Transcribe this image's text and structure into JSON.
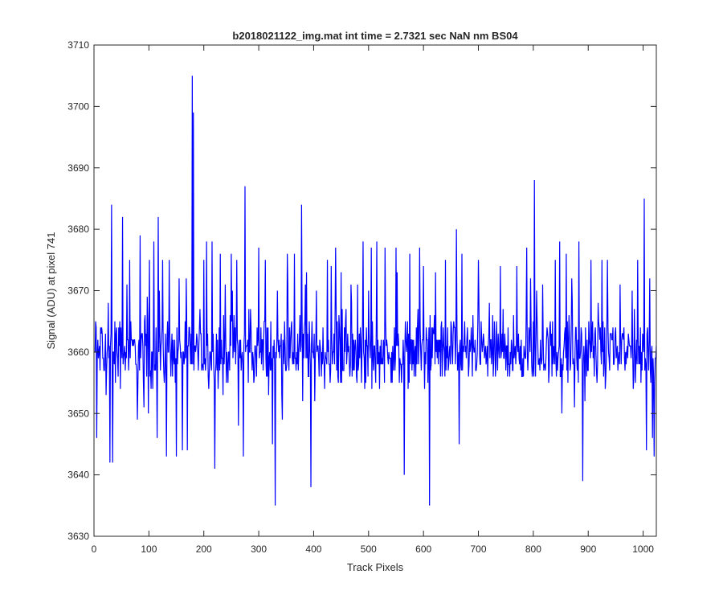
{
  "chart_data": {
    "type": "line",
    "title": "b2018021122_img.mat int time = 2.7321 sec  NaN nm BS04",
    "xlabel": "Track Pixels",
    "ylabel": "Signal (ADU) at pixel 741",
    "xlim": [
      0,
      1024
    ],
    "ylim": [
      3630,
      3710
    ],
    "xticks": [
      0,
      100,
      200,
      300,
      400,
      500,
      600,
      700,
      800,
      900,
      1000
    ],
    "yticks": [
      3630,
      3640,
      3650,
      3660,
      3670,
      3680,
      3690,
      3700,
      3710
    ],
    "grid": false,
    "series": [
      {
        "color": "#0000ff",
        "x_start": 1,
        "x_step": 1,
        "mean": 3660,
        "noise_range": [
          3652,
          3668
        ],
        "spikes": [
          {
            "x": 3,
            "y": 3665
          },
          {
            "x": 5,
            "y": 3646
          },
          {
            "x": 14,
            "y": 3664
          },
          {
            "x": 22,
            "y": 3653
          },
          {
            "x": 26,
            "y": 3668
          },
          {
            "x": 29,
            "y": 3642
          },
          {
            "x": 32,
            "y": 3684
          },
          {
            "x": 34,
            "y": 3642
          },
          {
            "x": 52,
            "y": 3682
          },
          {
            "x": 60,
            "y": 3671
          },
          {
            "x": 65,
            "y": 3675
          },
          {
            "x": 79,
            "y": 3649
          },
          {
            "x": 84,
            "y": 3679
          },
          {
            "x": 101,
            "y": 3675
          },
          {
            "x": 109,
            "y": 3678
          },
          {
            "x": 115,
            "y": 3646
          },
          {
            "x": 117,
            "y": 3682
          },
          {
            "x": 125,
            "y": 3675
          },
          {
            "x": 132,
            "y": 3643
          },
          {
            "x": 137,
            "y": 3675
          },
          {
            "x": 150,
            "y": 3643
          },
          {
            "x": 155,
            "y": 3672
          },
          {
            "x": 161,
            "y": 3644
          },
          {
            "x": 170,
            "y": 3644
          },
          {
            "x": 179,
            "y": 3705
          },
          {
            "x": 181,
            "y": 3699
          },
          {
            "x": 200,
            "y": 3675
          },
          {
            "x": 205,
            "y": 3678
          },
          {
            "x": 215,
            "y": 3678
          },
          {
            "x": 220,
            "y": 3641
          },
          {
            "x": 230,
            "y": 3676
          },
          {
            "x": 250,
            "y": 3676
          },
          {
            "x": 260,
            "y": 3675
          },
          {
            "x": 272,
            "y": 3643
          },
          {
            "x": 275,
            "y": 3687
          },
          {
            "x": 285,
            "y": 3667
          },
          {
            "x": 300,
            "y": 3677
          },
          {
            "x": 312,
            "y": 3675
          },
          {
            "x": 325,
            "y": 3645
          },
          {
            "x": 330,
            "y": 3635
          },
          {
            "x": 334,
            "y": 3670
          },
          {
            "x": 352,
            "y": 3676
          },
          {
            "x": 365,
            "y": 3676
          },
          {
            "x": 378,
            "y": 3684
          },
          {
            "x": 385,
            "y": 3671
          },
          {
            "x": 395,
            "y": 3638
          },
          {
            "x": 405,
            "y": 3670
          },
          {
            "x": 425,
            "y": 3675
          },
          {
            "x": 440,
            "y": 3677
          },
          {
            "x": 450,
            "y": 3673
          },
          {
            "x": 480,
            "y": 3671
          },
          {
            "x": 490,
            "y": 3678
          },
          {
            "x": 500,
            "y": 3670
          },
          {
            "x": 505,
            "y": 3677
          },
          {
            "x": 515,
            "y": 3678
          },
          {
            "x": 530,
            "y": 3677
          },
          {
            "x": 550,
            "y": 3677
          },
          {
            "x": 565,
            "y": 3640
          },
          {
            "x": 575,
            "y": 3676
          },
          {
            "x": 593,
            "y": 3677
          },
          {
            "x": 600,
            "y": 3674
          },
          {
            "x": 611,
            "y": 3635
          },
          {
            "x": 622,
            "y": 3673
          },
          {
            "x": 640,
            "y": 3675
          },
          {
            "x": 660,
            "y": 3680
          },
          {
            "x": 665,
            "y": 3645
          },
          {
            "x": 670,
            "y": 3676
          },
          {
            "x": 700,
            "y": 3675
          },
          {
            "x": 720,
            "y": 3668
          },
          {
            "x": 740,
            "y": 3674
          },
          {
            "x": 770,
            "y": 3674
          },
          {
            "x": 788,
            "y": 3677
          },
          {
            "x": 795,
            "y": 3672
          },
          {
            "x": 802,
            "y": 3688
          },
          {
            "x": 806,
            "y": 3670
          },
          {
            "x": 817,
            "y": 3671
          },
          {
            "x": 840,
            "y": 3675
          },
          {
            "x": 848,
            "y": 3678
          },
          {
            "x": 860,
            "y": 3676
          },
          {
            "x": 870,
            "y": 3672
          },
          {
            "x": 883,
            "y": 3678
          },
          {
            "x": 890,
            "y": 3639
          },
          {
            "x": 905,
            "y": 3675
          },
          {
            "x": 925,
            "y": 3675
          },
          {
            "x": 935,
            "y": 3675
          },
          {
            "x": 950,
            "y": 3664
          },
          {
            "x": 958,
            "y": 3671
          },
          {
            "x": 980,
            "y": 3670
          },
          {
            "x": 990,
            "y": 3675
          },
          {
            "x": 1002,
            "y": 3685
          },
          {
            "x": 1006,
            "y": 3644
          },
          {
            "x": 1012,
            "y": 3672
          },
          {
            "x": 1017,
            "y": 3646
          },
          {
            "x": 1020,
            "y": 3643
          }
        ]
      }
    ]
  }
}
